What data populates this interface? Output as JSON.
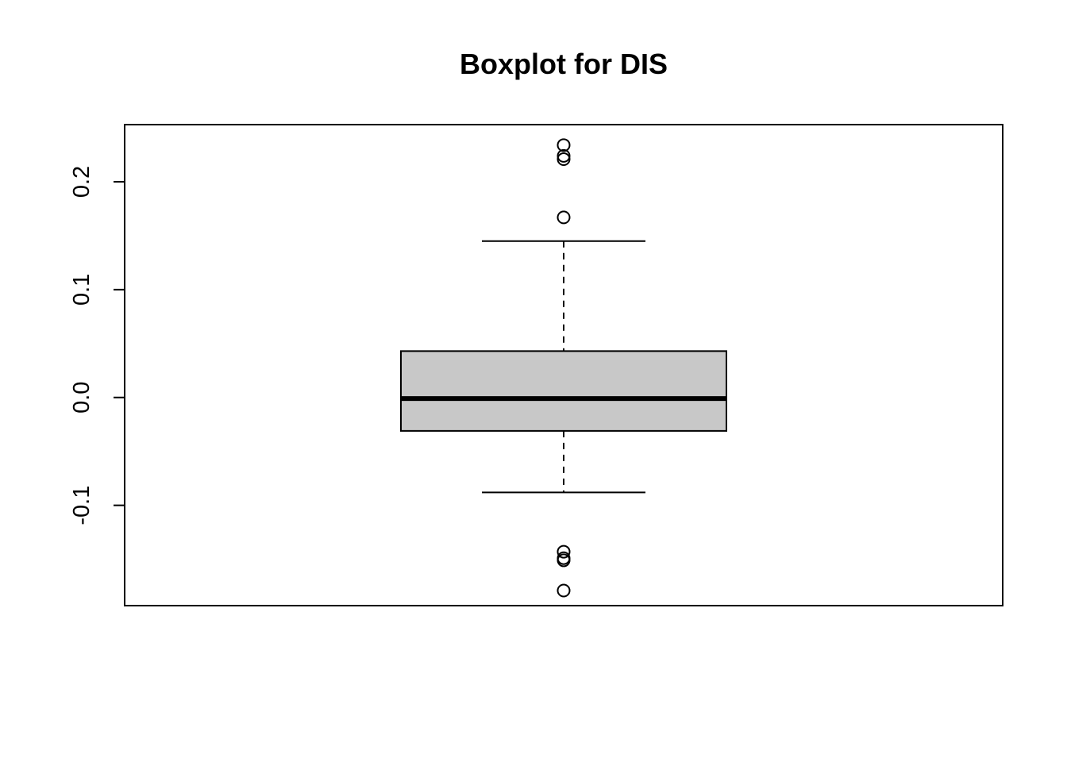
{
  "chart_data": {
    "type": "boxplot",
    "title": "Boxplot for DIS",
    "xlabel": "",
    "ylabel": "",
    "ylim": [
      -0.193,
      0.253
    ],
    "y_ticks": [
      {
        "value": -0.1,
        "label": "-0.1"
      },
      {
        "value": 0.0,
        "label": "0.0"
      },
      {
        "value": 0.1,
        "label": "0.1"
      },
      {
        "value": 0.2,
        "label": "0.2"
      }
    ],
    "grid": false,
    "box": {
      "whisker_low": -0.088,
      "q1": -0.031,
      "median": -0.001,
      "q3": 0.043,
      "whisker_high": 0.145
    },
    "outliers": [
      0.234,
      0.224,
      0.221,
      0.167,
      -0.143,
      -0.149,
      -0.151,
      -0.179
    ],
    "colors": {
      "box_fill": "#c8c8c8",
      "stroke": "#000000",
      "background": "#ffffff"
    }
  }
}
